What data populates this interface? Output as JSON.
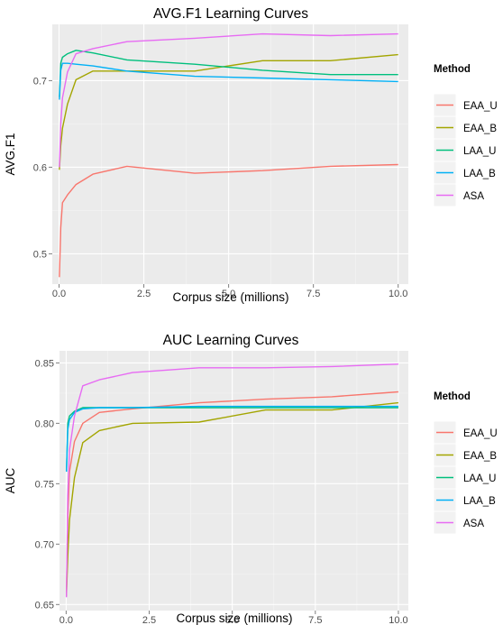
{
  "chart_data": [
    {
      "type": "line",
      "title": "AVG.F1 Learning Curves",
      "xlabel": "Corpus size (millions)",
      "ylabel": "AVG.F1",
      "xlim": [
        -0.2,
        10.3
      ],
      "ylim": [
        0.465,
        0.765
      ],
      "xticks": [
        0,
        2.5,
        5,
        7.5,
        10
      ],
      "xtick_labels": [
        "0.0",
        "2.5",
        "5.0",
        "7.5",
        "10.0"
      ],
      "yticks": [
        0.5,
        0.6,
        0.7
      ],
      "ytick_labels": [
        "0.5",
        "0.6",
        "0.7"
      ],
      "grid": true,
      "legend": {
        "title": "Method",
        "position": "right"
      },
      "series": [
        {
          "name": "EAA_U",
          "color": "#F8766D",
          "x": [
            0.01,
            0.05,
            0.1,
            0.25,
            0.5,
            1,
            2,
            4,
            6,
            8,
            10
          ],
          "y": [
            0.473,
            0.53,
            0.559,
            0.568,
            0.58,
            0.592,
            0.601,
            0.593,
            0.596,
            0.601,
            0.603
          ]
        },
        {
          "name": "EAA_B",
          "color": "#A3A500",
          "x": [
            0.01,
            0.05,
            0.1,
            0.25,
            0.5,
            1,
            2,
            4,
            6,
            8,
            10
          ],
          "y": [
            0.597,
            0.625,
            0.645,
            0.673,
            0.701,
            0.711,
            0.711,
            0.711,
            0.723,
            0.723,
            0.73
          ]
        },
        {
          "name": "LAA_U",
          "color": "#00BF7D",
          "x": [
            0.01,
            0.05,
            0.1,
            0.25,
            0.5,
            1,
            2,
            4,
            6,
            8,
            10
          ],
          "y": [
            0.681,
            0.72,
            0.727,
            0.731,
            0.735,
            0.732,
            0.724,
            0.719,
            0.712,
            0.707,
            0.707
          ]
        },
        {
          "name": "LAA_B",
          "color": "#00B0F6",
          "x": [
            0.01,
            0.05,
            0.1,
            0.25,
            0.5,
            1,
            2,
            4,
            6,
            8,
            10
          ],
          "y": [
            0.678,
            0.712,
            0.72,
            0.72,
            0.719,
            0.717,
            0.711,
            0.705,
            0.703,
            0.701,
            0.699
          ]
        },
        {
          "name": "ASA",
          "color": "#E76BF3",
          "x": [
            0.01,
            0.05,
            0.1,
            0.25,
            0.5,
            1,
            2,
            4,
            6,
            8,
            10
          ],
          "y": [
            0.6,
            0.65,
            0.68,
            0.71,
            0.731,
            0.737,
            0.745,
            0.749,
            0.754,
            0.752,
            0.754
          ]
        }
      ]
    },
    {
      "type": "line",
      "title": "AUC Learning Curves",
      "xlabel": "Corpus size (millions)",
      "ylabel": "AUC",
      "xlim": [
        -0.2,
        10.3
      ],
      "ylim": [
        0.645,
        0.86
      ],
      "xticks": [
        0,
        2.5,
        5,
        7.5,
        10
      ],
      "xtick_labels": [
        "0.0",
        "2.5",
        "5.0",
        "7.5",
        "10.0"
      ],
      "yticks": [
        0.65,
        0.7,
        0.75,
        0.8,
        0.85
      ],
      "ytick_labels": [
        "0.65",
        "0.70",
        "0.75",
        "0.80",
        "0.85"
      ],
      "grid": true,
      "legend": {
        "title": "Method",
        "position": "right"
      },
      "series": [
        {
          "name": "EAA_U",
          "color": "#F8766D",
          "x": [
            0.01,
            0.05,
            0.1,
            0.25,
            0.5,
            1,
            2,
            4,
            6,
            8,
            10
          ],
          "y": [
            0.66,
            0.72,
            0.76,
            0.785,
            0.8,
            0.809,
            0.812,
            0.817,
            0.82,
            0.822,
            0.826
          ]
        },
        {
          "name": "EAA_B",
          "color": "#A3A500",
          "x": [
            0.01,
            0.05,
            0.1,
            0.25,
            0.5,
            1,
            2,
            4,
            6,
            8,
            10
          ],
          "y": [
            0.657,
            0.69,
            0.72,
            0.755,
            0.784,
            0.794,
            0.8,
            0.801,
            0.811,
            0.811,
            0.817
          ]
        },
        {
          "name": "LAA_U",
          "color": "#00BF7D",
          "x": [
            0.01,
            0.05,
            0.1,
            0.25,
            0.5,
            1,
            2,
            4,
            6,
            8,
            10
          ],
          "y": [
            0.76,
            0.8,
            0.806,
            0.81,
            0.813,
            0.813,
            0.813,
            0.813,
            0.813,
            0.813,
            0.813
          ]
        },
        {
          "name": "LAA_B",
          "color": "#00B0F6",
          "x": [
            0.01,
            0.05,
            0.1,
            0.25,
            0.5,
            1,
            2,
            4,
            6,
            8,
            10
          ],
          "y": [
            0.76,
            0.795,
            0.803,
            0.809,
            0.812,
            0.813,
            0.813,
            0.814,
            0.814,
            0.814,
            0.814
          ]
        },
        {
          "name": "ASA",
          "color": "#E76BF3",
          "x": [
            0.01,
            0.05,
            0.1,
            0.25,
            0.5,
            1,
            2,
            4,
            6,
            8,
            10
          ],
          "y": [
            0.656,
            0.74,
            0.778,
            0.806,
            0.831,
            0.836,
            0.842,
            0.846,
            0.846,
            0.847,
            0.849
          ]
        }
      ]
    }
  ]
}
